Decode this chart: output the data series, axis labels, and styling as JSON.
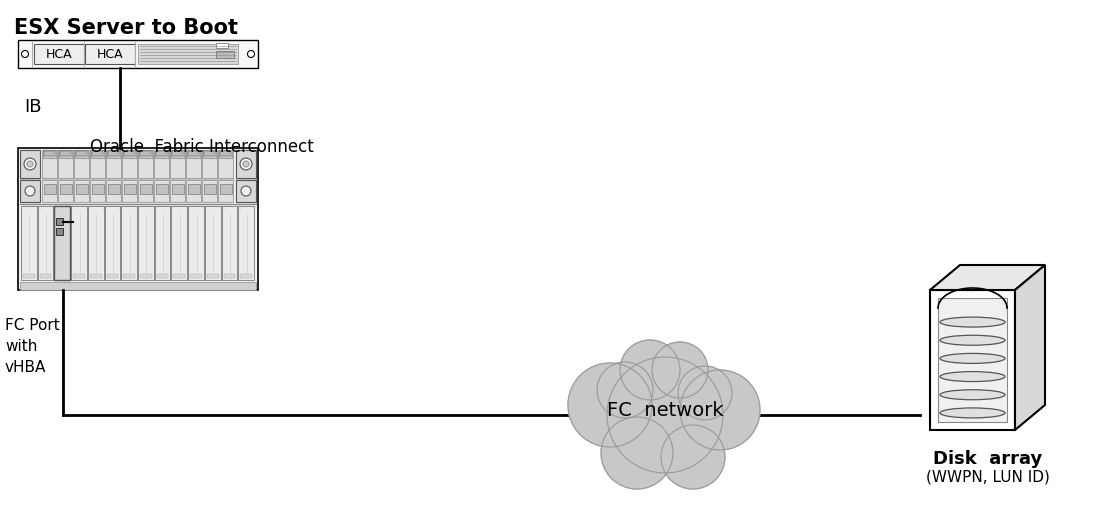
{
  "bg_color": "#ffffff",
  "line_color": "#000000",
  "gray_fill": "#f0f0f0",
  "light_gray": "#e8e8e8",
  "mid_gray": "#d0d0d0",
  "cloud_color": "#c8c8c8",
  "cloud_edge_color": "#999999",
  "esx_label": "ESX Server to Boot",
  "server_label": "Oracle  Fabric Interconnect",
  "ib_label": "IB",
  "fc_port_label": "FC Port\nwith\nvHBA",
  "cloud_label": "FC  network",
  "disk_label": "Disk  array",
  "disk_sublabel": "(WWPN, LUN ID)",
  "hca_label1": "HCA",
  "hca_label2": "HCA",
  "title_fontsize": 15,
  "label_fontsize": 12,
  "cloud_fontsize": 14,
  "disk_fontsize": 13
}
